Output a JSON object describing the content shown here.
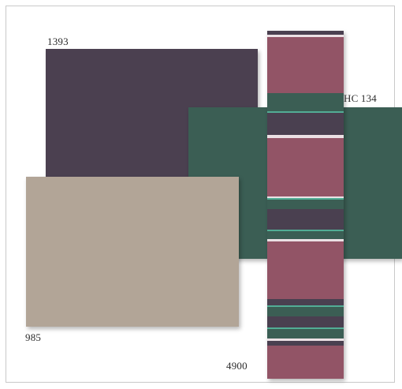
{
  "swatches": {
    "s1393": {
      "label": "1393",
      "color": "#4b4050"
    },
    "hc134": {
      "label": "HC 134",
      "color": "#3b5e54"
    },
    "s985": {
      "label": "985",
      "color": "#b2a597"
    },
    "s4900": {
      "label": "4900",
      "colors": {
        "plum": "#925466",
        "green": "#3b5e54",
        "dark": "#4a4050",
        "light": "#ebe0e4",
        "mint": "#52ad95"
      }
    }
  }
}
